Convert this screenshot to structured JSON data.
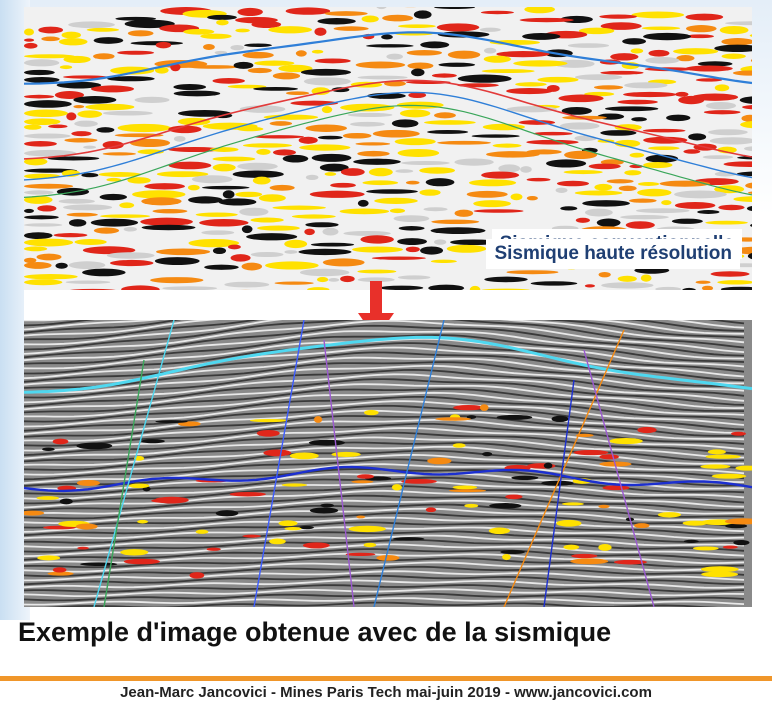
{
  "figure": {
    "top_label": "Sismique conventionnelle",
    "bottom_label": "Sismique haute résolution",
    "arrow_color": "#e8302a"
  },
  "caption": "Exemple d'image obtenue avec de la sismique",
  "footer": "Jean-Marc Jancovici - Mines Paris Tech mai-juin 2019 - www.jancovici.com",
  "colors": {
    "accent_rule": "#f0962a",
    "label_text": "#1f3f73",
    "horizon_blue": "#2f7fd8",
    "horizon_red": "#e23a3a",
    "horizon_cyan": "#4fd8f0"
  }
}
